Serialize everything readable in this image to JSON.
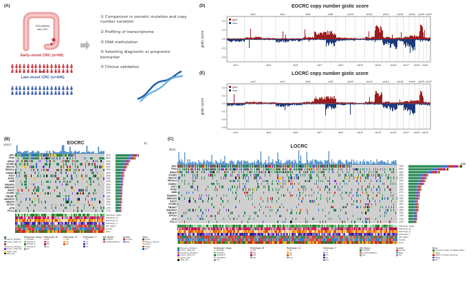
{
  "panel_a": {
    "label": "(A)",
    "patients_text": "515 patients with CRC",
    "early_label": "Early-onset CRC (n=69)",
    "vs_label": "vs",
    "late_label": "Late-onset CRC (n=446)",
    "steps": [
      "① Comparison in somatic mutation and copy number variation",
      "② Profiling of transcriptome",
      "③ DNA methylation",
      "④ Selecting diagnostic or prognostic biomarker",
      "⑤ Clinical validation"
    ],
    "colors": {
      "early": "#c8333a",
      "late": "#3a5fb0",
      "colon": "#e9a0a0"
    }
  },
  "panel_d": {
    "label": "(D)",
    "title": "EOCRC copy number gistic score",
    "ylabel": "gistic score",
    "legend": [
      "gain",
      "loss"
    ],
    "top_chroms": [
      "chr2",
      "chr4",
      "chr6",
      "chr8",
      "chr10",
      "chr12",
      "chr14",
      "chr16",
      "chr18",
      "chr20",
      "chr22"
    ],
    "bottom_chroms": [
      "chr1",
      "chr3",
      "chr5",
      "chr7",
      "chr9",
      "chr11",
      "chr13",
      "chr15",
      "chr17",
      "chr19",
      "chr21"
    ],
    "yticks": [
      "0.4",
      "0.2",
      "0.0",
      "-0.2",
      "-0.4"
    ]
  },
  "panel_e": {
    "label": "(E)",
    "title": "LOCRC copy number gistic score",
    "ylabel": "gistic score",
    "legend": [
      "gain",
      "loss"
    ],
    "top_chroms": [
      "chr2",
      "chr4",
      "chr6",
      "chr8",
      "chr10",
      "chr12",
      "chr14",
      "chr16",
      "chr18",
      "chr20",
      "chr22"
    ],
    "bottom_chroms": [
      "chr1",
      "chr3",
      "chr5",
      "chr7",
      "chr9",
      "chr11",
      "chr13",
      "chr15",
      "chr17",
      "chr19",
      "chr21"
    ],
    "yticks": [
      "0.4",
      "0.2",
      "0.0",
      "-0.2",
      "-0.4",
      "-0.6"
    ]
  },
  "panel_b": {
    "label": "(B)",
    "title": "EOCRC",
    "tmb_max": "10417",
    "bar_max": "43",
    "genes": [
      "APC",
      "TP53",
      "KRAS",
      "SYNE1",
      "MUC16",
      "PIK3CA",
      "CSMD1",
      "FAT3",
      "RYR2",
      "NEB",
      "DNAH11",
      "ABCA13",
      "SACS",
      "SYNE2",
      "FBXW7",
      "ADGRV1",
      "OBSCN",
      "SPTA1",
      "ATM",
      "PCLO"
    ],
    "pcts": [
      "67%",
      "58%",
      "42%",
      "38%",
      "33%",
      "29%",
      "25%",
      "25%",
      "23%",
      "22%",
      "22%",
      "20%",
      "20%",
      "20%",
      "19%",
      "19%",
      "19%",
      "17%",
      "17%",
      "17%"
    ],
    "tracks": [
      "Pathologic_Stage",
      "Pathologic_M",
      "Pathologic_N",
      "Pathologic_T",
      "MS_Status",
      "Gender",
      "Race"
    ],
    "legend": [
      {
        "title": "",
        "items": [
          "Missense_Mutation",
          "Frame_Shift_Ins",
          "Nonsense_Mutation",
          "Frame_Shift_Del",
          "Splice_Site",
          "Multi_Hit"
        ]
      },
      {
        "title": "Pathologic_Stage",
        "items": [
          "STAGE I",
          "STAGE II",
          "STAGE III",
          "STAGE IV",
          "NA"
        ]
      },
      {
        "title": "Pathologic_M",
        "items": [
          "M0",
          "M1",
          "MX",
          "NA"
        ]
      },
      {
        "title": "Pathologic_N",
        "items": [
          "N0",
          "N1",
          "N2"
        ]
      },
      {
        "title": "Pathologic_T",
        "items": [
          "T1",
          "T2",
          "T3",
          "T4"
        ]
      },
      {
        "title": "MS_Status",
        "items": [
          "0 (MSS)",
          "1 (MSI-H/MSI-L)"
        ]
      },
      {
        "title": "Gender",
        "items": [
          "Female",
          "Male"
        ]
      },
      {
        "title": "Race",
        "items": [
          "Asian",
          "Black or African American",
          "White",
          "NA"
        ]
      }
    ]
  },
  "panel_c": {
    "label": "(C)",
    "title": "LOCRC",
    "tmb_max": "8541",
    "bar_max": "289",
    "genes": [
      "APC",
      "TP53",
      "KRAS",
      "SYNE1",
      "MUC16",
      "PIK3CA",
      "CSMD1",
      "FAT3",
      "RYR2",
      "NEB",
      "DNAH11",
      "ABCA13",
      "SACS",
      "SYNE2",
      "FBXW7",
      "ADGRV1",
      "OBSCN",
      "SPTA1",
      "ATM",
      "PCLO"
    ],
    "pcts": [
      "79%",
      "59%",
      "46%",
      "29%",
      "27%",
      "25%",
      "23%",
      "19%",
      "19%",
      "17%",
      "17%",
      "16%",
      "14%",
      "15%",
      "15%",
      "15%",
      "13%",
      "13%",
      "13%",
      "12%"
    ],
    "tracks": [
      "Pathologic_Stage",
      "Pathologic_M",
      "Pathologic_N",
      "Pathologic_T",
      "MS_Status",
      "Gender",
      "Race"
    ],
    "legend": [
      {
        "title": "",
        "items": [
          "Missense_Mutation",
          "Frame_Shift_Del",
          "Nonsense_Mutation",
          "Frame_Shift_Ins",
          "Splice_Site",
          "Multi_Hit"
        ]
      },
      {
        "title": "Pathologic_Stage",
        "items": [
          "STAGE I",
          "STAGE II",
          "STAGE III",
          "STAGE IV",
          "NA"
        ]
      },
      {
        "title": "Pathologic_M",
        "items": [
          "M0",
          "M1",
          "MX",
          "NA"
        ]
      },
      {
        "title": "Pathologic_N",
        "items": [
          "N0",
          "N1",
          "N2",
          "NA"
        ]
      },
      {
        "title": "Pathologic_T",
        "items": [
          "T1",
          "T2",
          "T3",
          "T4",
          "NA"
        ]
      },
      {
        "title": "MS_Status",
        "items": [
          "0 (MSS)",
          "1 (MSI-H/MSI-L)",
          "NA"
        ]
      },
      {
        "title": "Gender",
        "items": [
          "Female",
          "Male",
          "NA"
        ]
      },
      {
        "title": "Race",
        "items": [
          "American Indian or Alaska Native",
          "Asian",
          "Black or African American",
          "White",
          "NA"
        ]
      }
    ]
  },
  "colors": {
    "missense": "#2e8b57",
    "frameshift_ins": "#8a2be2",
    "nonsense": "#c0392b",
    "frameshift_del": "#3a6fd8",
    "splice": "#f2c200",
    "multi": "#111111",
    "gain": "#9b1c1c",
    "loss": "#1f3a7a"
  }
}
